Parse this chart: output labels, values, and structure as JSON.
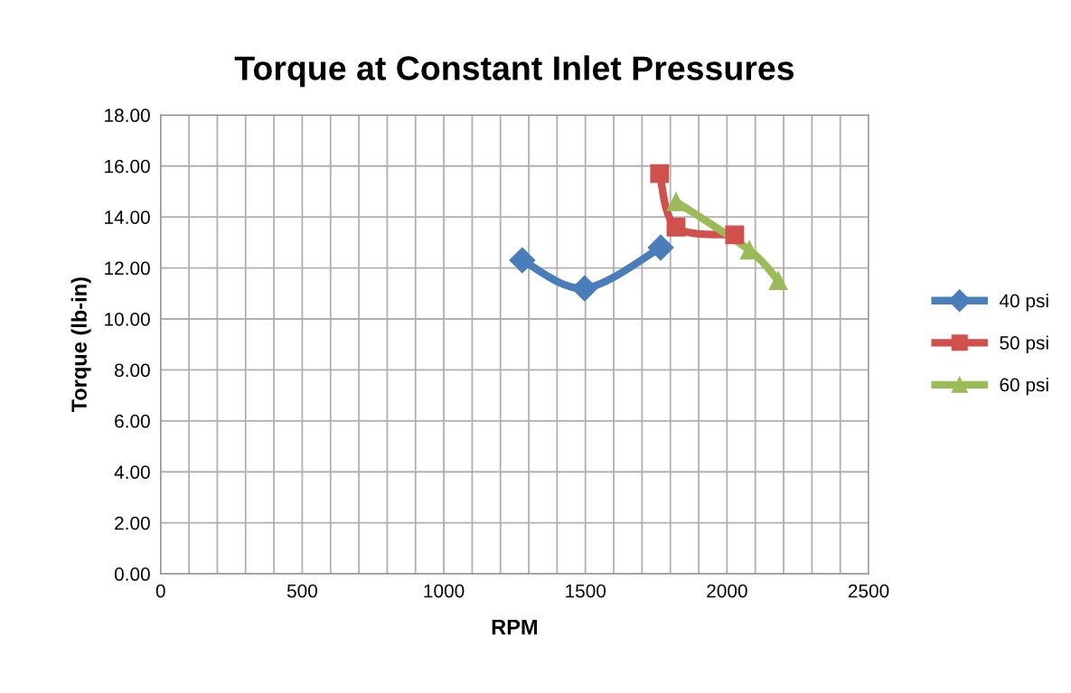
{
  "chart_data": {
    "type": "line",
    "title": "Torque at Constant Inlet Pressures",
    "xlabel": "RPM",
    "ylabel": "Torque (lb-in)",
    "xlim": [
      0,
      2500
    ],
    "xticks": [
      0,
      {
        "value": 100,
        "label": null
      },
      {
        "value": 200,
        "label": null
      },
      {
        "value": 300,
        "label": null
      },
      {
        "value": 400,
        "label": null
      },
      500,
      {
        "value": 600,
        "label": null
      },
      {
        "value": 700,
        "label": null
      },
      {
        "value": 800,
        "label": null
      },
      {
        "value": 900,
        "label": null
      },
      1000,
      {
        "value": 1100,
        "label": null
      },
      {
        "value": 1200,
        "label": null
      },
      {
        "value": 1300,
        "label": null
      },
      {
        "value": 1400,
        "label": null
      },
      1500,
      {
        "value": 1600,
        "label": null
      },
      {
        "value": 1700,
        "label": null
      },
      {
        "value": 1800,
        "label": null
      },
      {
        "value": 1900,
        "label": null
      },
      2000,
      {
        "value": 2100,
        "label": null
      },
      {
        "value": 2200,
        "label": null
      },
      {
        "value": 2300,
        "label": null
      },
      {
        "value": 2400,
        "label": null
      },
      2500
    ],
    "ylim": [
      0,
      18
    ],
    "yticks": [
      {
        "value": 0,
        "label": "0.00"
      },
      {
        "value": 2,
        "label": "2.00"
      },
      {
        "value": 4,
        "label": "4.00"
      },
      {
        "value": 6,
        "label": "6.00"
      },
      {
        "value": 8,
        "label": "8.00"
      },
      {
        "value": 10,
        "label": "10.00"
      },
      {
        "value": 12,
        "label": "12.00"
      },
      {
        "value": 14,
        "label": "14.00"
      },
      {
        "value": 16,
        "label": "16.00"
      },
      {
        "value": 18,
        "label": "18.00"
      }
    ],
    "grid": true,
    "legend": "right",
    "series": [
      {
        "name": "40 psi",
        "color": "#4a7ebb",
        "marker": "diamond",
        "x": [
          1277,
          1497,
          1766
        ],
        "values": [
          12.3,
          11.2,
          12.8
        ]
      },
      {
        "name": "50 psi",
        "color": "#d0504d",
        "marker": "square",
        "x": [
          1762,
          1820,
          2027
        ],
        "values": [
          15.7,
          13.6,
          13.3
        ]
      },
      {
        "name": "60 psi",
        "color": "#9bbb59",
        "marker": "triangle",
        "x": [
          1820,
          2079,
          2181
        ],
        "values": [
          14.6,
          12.7,
          11.5
        ]
      }
    ]
  }
}
